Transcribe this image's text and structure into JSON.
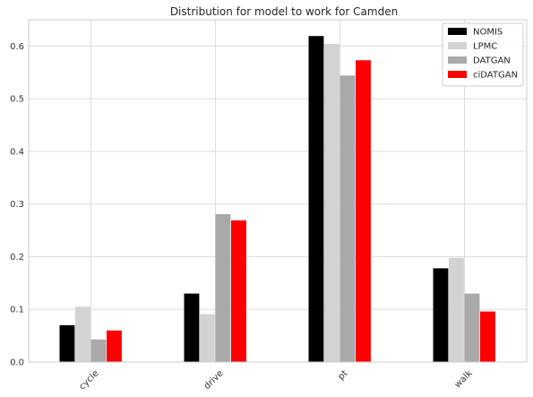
{
  "chart_data": {
    "type": "bar",
    "title": "Distribution for model to work for Camden",
    "xlabel": "",
    "ylabel": "",
    "categories": [
      "cycle",
      "drive",
      "pt",
      "walk"
    ],
    "series": [
      {
        "name": "NOMIS",
        "color": "#000000",
        "values": [
          0.07,
          0.13,
          0.619,
          0.178
        ]
      },
      {
        "name": "LPMC",
        "color": "#d3d3d3",
        "values": [
          0.105,
          0.091,
          0.604,
          0.198
        ]
      },
      {
        "name": "DATGAN",
        "color": "#a9a9a9",
        "values": [
          0.043,
          0.281,
          0.544,
          0.13
        ]
      },
      {
        "name": "ciDATGAN",
        "color": "#ff0000",
        "values": [
          0.06,
          0.269,
          0.573,
          0.096
        ]
      }
    ],
    "ylim": [
      0,
      0.65
    ],
    "yticks": [
      0.0,
      0.1,
      0.2,
      0.3,
      0.4,
      0.5,
      0.6
    ],
    "ytick_labels": [
      "0.0",
      "0.1",
      "0.2",
      "0.3",
      "0.4",
      "0.5",
      "0.6"
    ],
    "grid": true,
    "legend_position": "top-right"
  }
}
